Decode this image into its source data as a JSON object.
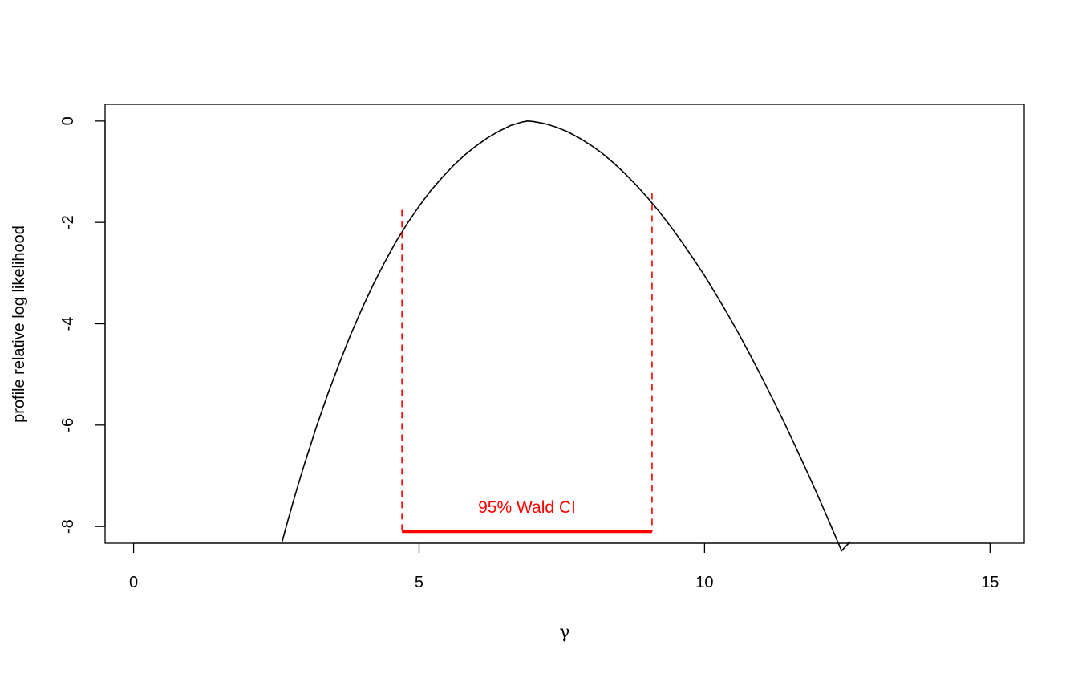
{
  "chart_data": {
    "type": "line",
    "title": "",
    "xlabel": "γ",
    "ylabel": "profile relative log likelihood",
    "xlim": [
      -0.5,
      15.6
    ],
    "ylim": [
      -8.33,
      0.33
    ],
    "x_ticks": [
      0,
      5,
      10,
      15
    ],
    "x_tick_labels": [
      "0",
      "5",
      "10",
      "15"
    ],
    "y_ticks": [
      0,
      -2,
      -4,
      -6,
      -8
    ],
    "y_tick_labels": [
      "0",
      "-2",
      "-4",
      "-6",
      "-8"
    ],
    "grid": false,
    "series": [
      {
        "color": "#000000",
        "x": [
          2.6,
          2.7,
          2.8,
          2.9,
          3.0,
          3.2,
          3.4,
          3.6,
          3.8,
          4.0,
          4.2,
          4.4,
          4.6,
          4.8,
          5.0,
          5.2,
          5.4,
          5.6,
          5.8,
          6.0,
          6.2,
          6.4,
          6.6,
          6.8,
          6.9,
          7.0,
          7.2,
          7.4,
          7.6,
          7.8,
          8.0,
          8.2,
          8.4,
          8.6,
          8.8,
          9.0,
          9.2,
          9.4,
          9.6,
          9.8,
          10.0,
          10.2,
          10.4,
          10.6,
          10.8,
          11.0,
          11.2,
          11.4,
          11.6,
          11.8,
          12.0,
          12.2,
          12.4,
          12.55
        ],
        "y": [
          -8.3,
          -7.89,
          -7.49,
          -7.11,
          -6.74,
          -6.04,
          -5.39,
          -4.79,
          -4.22,
          -3.7,
          -3.22,
          -2.78,
          -2.37,
          -2.01,
          -1.68,
          -1.38,
          -1.12,
          -0.88,
          -0.67,
          -0.49,
          -0.33,
          -0.2,
          -0.09,
          -0.02,
          0.0,
          -0.01,
          -0.05,
          -0.12,
          -0.21,
          -0.33,
          -0.47,
          -0.63,
          -0.82,
          -1.03,
          -1.26,
          -1.51,
          -1.78,
          -2.07,
          -2.38,
          -2.71,
          -3.05,
          -3.42,
          -3.8,
          -4.2,
          -4.62,
          -5.05,
          -5.5,
          -5.96,
          -6.44,
          -6.93,
          -7.43,
          -7.95,
          -8.48,
          -8.3
        ]
      }
    ],
    "confidence_interval": {
      "label": "95% Wald CI",
      "color": "#ff0000",
      "lower": 4.7,
      "upper": 9.08,
      "lower_y": -1.75,
      "upper_y": -1.42,
      "bar_y": -8.1,
      "label_y": -7.6
    }
  }
}
